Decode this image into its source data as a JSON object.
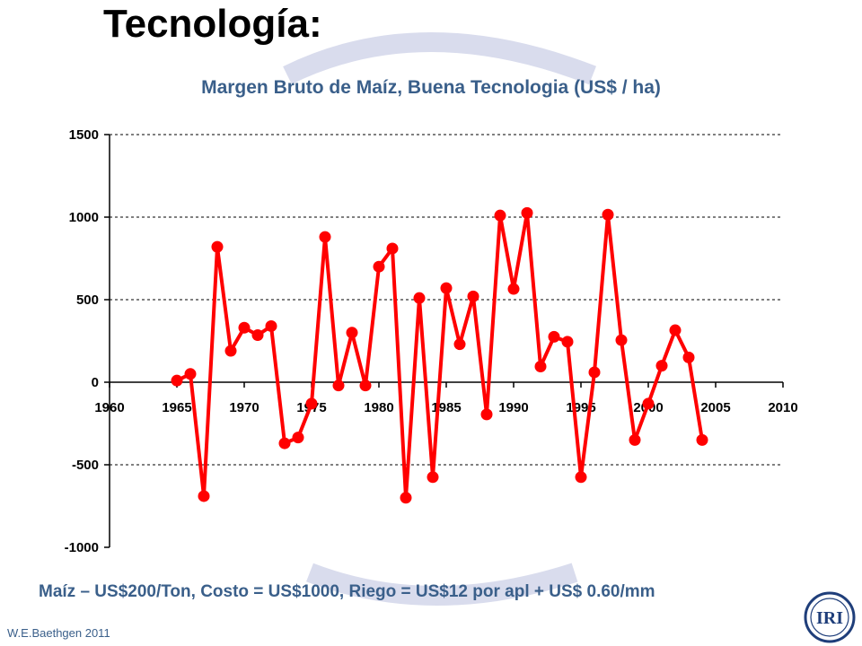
{
  "slide": {
    "title": "Tecnología:",
    "footnote": "Maíz – US$200/Ton, Costo = US$1000, Riego = US$12 por apl + US$ 0.60/mm",
    "credit": "W.E.Baethgen 2011",
    "logo_text": "IRI"
  },
  "colors": {
    "series": "#ff0000",
    "title_blue": "#3a5f8a",
    "arc": "#d9dced",
    "logo_blue": "#1f3e7a"
  },
  "chart_data": {
    "type": "line",
    "title": "Margen Bruto de Maíz, Buena Tecnologia (US$ / ha)",
    "xlabel": "",
    "ylabel": "",
    "xlim": [
      1960,
      2010
    ],
    "ylim": [
      -1000,
      1500
    ],
    "xticks": [
      1960,
      1965,
      1970,
      1975,
      1980,
      1985,
      1990,
      1995,
      2000,
      2005,
      2010
    ],
    "yticks": [
      1500,
      1000,
      500,
      0,
      -500,
      -1000
    ],
    "grid": true,
    "legend": "none",
    "series": [
      {
        "x": [
          1965,
          1966,
          1967,
          1968,
          1969,
          1970,
          1971,
          1972,
          1973,
          1974,
          1975,
          1976,
          1977,
          1978,
          1979,
          1980,
          1981,
          1982,
          1983,
          1984,
          1985,
          1986,
          1987,
          1988,
          1989,
          1990,
          1991,
          1992,
          1993,
          1994,
          1995,
          1996,
          1997,
          1998,
          1999,
          2000,
          2001,
          2002,
          2003,
          2004
        ],
        "values": [
          10,
          50,
          -690,
          820,
          190,
          330,
          285,
          340,
          -370,
          -335,
          -130,
          880,
          -20,
          300,
          -20,
          700,
          810,
          -700,
          510,
          -575,
          570,
          230,
          520,
          -195,
          1010,
          565,
          1025,
          95,
          275,
          245,
          -575,
          60,
          1015,
          255,
          -350,
          -130,
          100,
          315,
          150,
          -350
        ]
      }
    ]
  }
}
